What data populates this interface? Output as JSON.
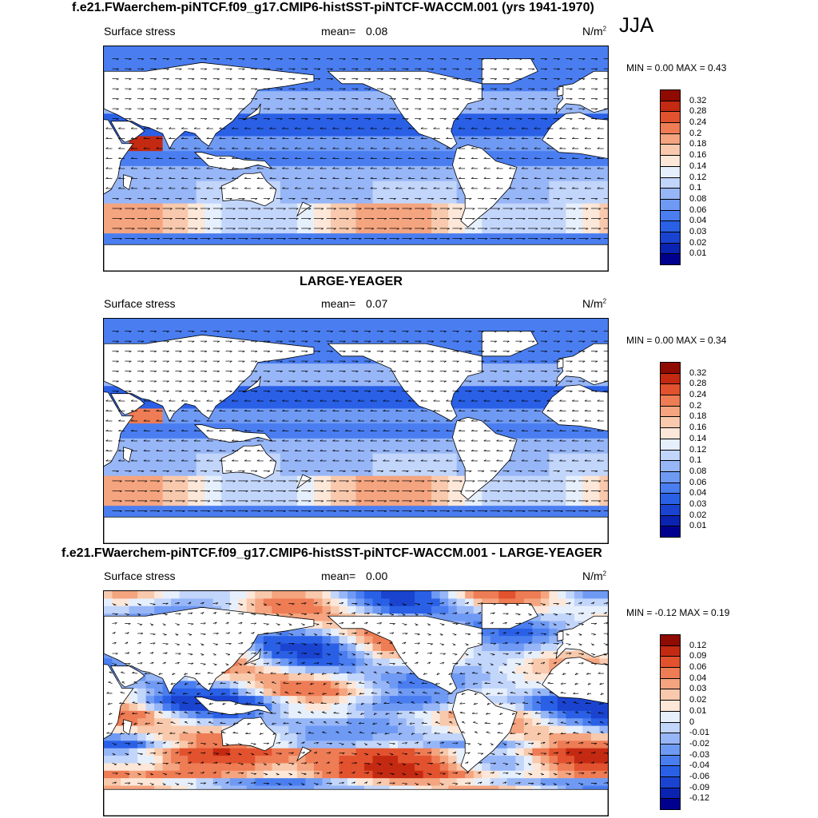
{
  "season": "JJA",
  "panels": [
    {
      "title": "f.e21.FWaerchem-piNTCF.f09_g17.CMIP6-histSST-piNTCF-WACCM.001 (yrs 1941-1970)",
      "variable": "Surface stress",
      "mean_label": "mean=",
      "mean_value": "0.08",
      "units": "N/m",
      "units_exp": "2",
      "minmax": "MIN =   0.00 MAX =   0.43",
      "colorbar_ticks": [
        "0.32",
        "0.28",
        "0.24",
        "0.2",
        "0.18",
        "0.16",
        "0.14",
        "0.12",
        "0.1",
        "0.08",
        "0.06",
        "0.04",
        "0.03",
        "0.02",
        "0.01"
      ],
      "colors": [
        "#00008f",
        "#0a23b0",
        "#1a44d0",
        "#2a60e6",
        "#4a7ef0",
        "#6f9af4",
        "#97b6f7",
        "#c2d5fa",
        "#e6effc",
        "#fde7d8",
        "#f8c9ac",
        "#f4a47f",
        "#ee7c55",
        "#e2522e",
        "#c42a12",
        "#8f0a00"
      ]
    },
    {
      "title": "LARGE-YEAGER",
      "variable": "Surface stress",
      "mean_label": "mean=",
      "mean_value": "0.07",
      "units": "N/m",
      "units_exp": "2",
      "minmax": "MIN =   0.00 MAX =   0.34",
      "colorbar_ticks": [
        "0.32",
        "0.28",
        "0.24",
        "0.2",
        "0.18",
        "0.16",
        "0.14",
        "0.12",
        "0.1",
        "0.08",
        "0.06",
        "0.04",
        "0.03",
        "0.02",
        "0.01"
      ],
      "colors": [
        "#00008f",
        "#0a23b0",
        "#1a44d0",
        "#2a60e6",
        "#4a7ef0",
        "#6f9af4",
        "#97b6f7",
        "#c2d5fa",
        "#e6effc",
        "#fde7d8",
        "#f8c9ac",
        "#f4a47f",
        "#ee7c55",
        "#e2522e",
        "#c42a12",
        "#8f0a00"
      ]
    },
    {
      "title": "f.e21.FWaerchem-piNTCF.f09_g17.CMIP6-histSST-piNTCF-WACCM.001 - LARGE-YEAGER",
      "variable": "Surface stress",
      "mean_label": "mean=",
      "mean_value": "0.00",
      "units": "N/m",
      "units_exp": "2",
      "minmax": "MIN =  -0.12 MAX =   0.19",
      "colorbar_ticks": [
        "0.12",
        "0.09",
        "0.06",
        "0.04",
        "0.03",
        "0.02",
        "0.01",
        "0",
        "-0.01",
        "-0.02",
        "-0.03",
        "-0.04",
        "-0.06",
        "-0.09",
        "-0.12"
      ],
      "colors": [
        "#00008f",
        "#0a23b0",
        "#1a44d0",
        "#2a60e6",
        "#4a7ef0",
        "#6f9af4",
        "#97b6f7",
        "#c2d5fa",
        "#e6effc",
        "#fde7d8",
        "#f8c9ac",
        "#f4a47f",
        "#ee7c55",
        "#e2522e",
        "#c42a12",
        "#8f0a00"
      ]
    }
  ],
  "chart_data": [
    {
      "type": "heatmap",
      "title": "f.e21.FWaerchem-piNTCF.f09_g17.CMIP6-histSST-piNTCF-WACCM.001 (yrs 1941-1970)",
      "variable": "Surface stress",
      "units": "N/m2",
      "mean": 0.08,
      "min": 0.0,
      "max": 0.43,
      "levels": [
        0.01,
        0.02,
        0.03,
        0.04,
        0.06,
        0.08,
        0.1,
        0.12,
        0.14,
        0.16,
        0.18,
        0.2,
        0.24,
        0.28,
        0.32
      ]
    },
    {
      "type": "heatmap",
      "title": "LARGE-YEAGER",
      "variable": "Surface stress",
      "units": "N/m2",
      "mean": 0.07,
      "min": 0.0,
      "max": 0.34,
      "levels": [
        0.01,
        0.02,
        0.03,
        0.04,
        0.06,
        0.08,
        0.1,
        0.12,
        0.14,
        0.16,
        0.18,
        0.2,
        0.24,
        0.28,
        0.32
      ]
    },
    {
      "type": "heatmap",
      "title": "f.e21.FWaerchem-piNTCF.f09_g17.CMIP6-histSST-piNTCF-WACCM.001 - LARGE-YEAGER",
      "variable": "Surface stress",
      "units": "N/m2",
      "mean": 0.0,
      "min": -0.12,
      "max": 0.19,
      "levels": [
        -0.12,
        -0.09,
        -0.06,
        -0.04,
        -0.03,
        -0.02,
        -0.01,
        0,
        0.01,
        0.02,
        0.03,
        0.04,
        0.06,
        0.09,
        0.12
      ]
    }
  ]
}
